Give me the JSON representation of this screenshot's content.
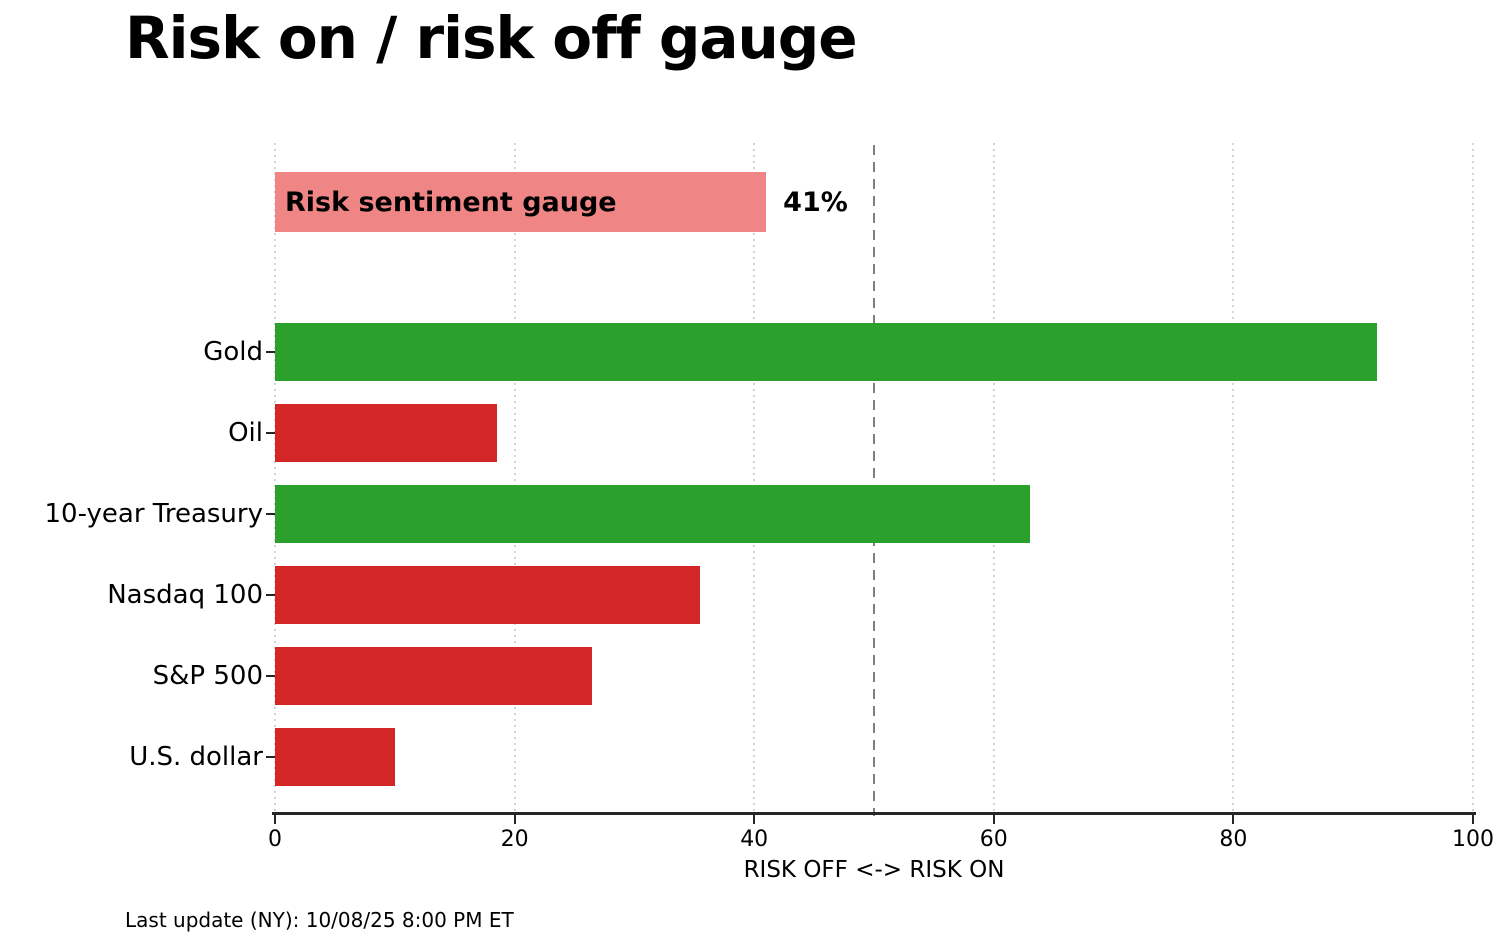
{
  "title": "Risk on / risk off gauge",
  "footer": "Last update (NY): 10/08/25 8:00 PM ET",
  "colors": {
    "risk_on_green": "#2ca02c",
    "risk_off_red": "#d32727",
    "gauge_pink": "#ef8585",
    "midline_gray": "#7f7f7f",
    "grid_gray": "#d2d2d2",
    "axis_dark": "#262626"
  },
  "gauge": {
    "label": "Risk sentiment gauge",
    "value": 41,
    "value_label": "41%"
  },
  "chart_data": {
    "type": "bar",
    "orientation": "horizontal",
    "title": "Risk on / risk off gauge",
    "categories": [
      "Gold",
      "Oil",
      "10-year Treasury",
      "Nasdaq 100",
      "S&P 500",
      "U.S. dollar"
    ],
    "values": [
      92,
      18.5,
      63,
      35.5,
      26.5,
      10
    ],
    "bar_colors": [
      "#2ca02c",
      "#d32727",
      "#2ca02c",
      "#d32727",
      "#d32727",
      "#d32727"
    ],
    "extra_series": {
      "name": "Risk sentiment gauge",
      "value": 41,
      "color": "#ef8585"
    },
    "xlabel": "RISK OFF <-> RISK ON",
    "ylabel": "",
    "xlim": [
      0,
      100
    ],
    "xticks": [
      0,
      20,
      40,
      60,
      80,
      100
    ],
    "midline": 50,
    "grid": "vertical-dotted",
    "legend": "none"
  }
}
